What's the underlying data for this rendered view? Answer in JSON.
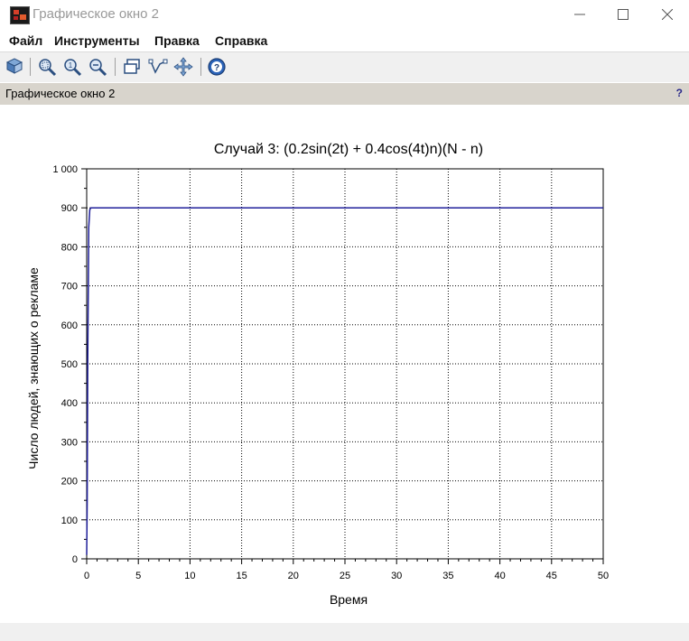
{
  "window": {
    "title": "Графическое окно 2",
    "controls": {
      "minimize": "—",
      "maximize": "☐",
      "close": "✕"
    }
  },
  "menu": {
    "items": [
      {
        "label": "Файл"
      },
      {
        "label": "Инструменты"
      },
      {
        "label": "Правка"
      },
      {
        "label": "Справка"
      }
    ]
  },
  "toolbar": {
    "icons": [
      "rotate-icon",
      "zoom-area-icon",
      "zoom-in-icon",
      "zoom-out-icon",
      "window-icon",
      "datatip-icon",
      "pan-icon",
      "help-icon"
    ]
  },
  "panel": {
    "title": "Графическое окно 2",
    "help": "?"
  },
  "colors": {
    "series": "#1f1f9a",
    "panel": "#d8d4cc",
    "toolbar": "#f0f0f0"
  },
  "chart_data": {
    "type": "line",
    "title": "Случай 3: (0.2sin(2t) + 0.4cos(4t)n)(N - n)",
    "xlabel": "Время",
    "ylabel": "Число людей, знающих о рекламе",
    "xlim": [
      0,
      50
    ],
    "ylim": [
      0,
      1000
    ],
    "xticks": [
      0,
      5,
      10,
      15,
      20,
      25,
      30,
      35,
      40,
      45,
      50
    ],
    "yticks": [
      0,
      100,
      200,
      300,
      400,
      500,
      600,
      700,
      800,
      900,
      1000
    ],
    "xtick_labels": [
      "0",
      "5",
      "10",
      "15",
      "20",
      "25",
      "30",
      "35",
      "40",
      "45",
      "50"
    ],
    "ytick_labels": [
      "0",
      "100",
      "200",
      "300",
      "400",
      "500",
      "600",
      "700",
      "800",
      "900",
      "1 000"
    ],
    "grid": true,
    "series": [
      {
        "x": [
          0,
          0.05,
          0.1,
          0.2,
          0.3,
          0.4,
          1,
          5,
          10,
          20,
          30,
          40,
          50
        ],
        "y": [
          10,
          150,
          500,
          850,
          895,
          900,
          900,
          900,
          900,
          900,
          900,
          900,
          900
        ]
      }
    ]
  }
}
